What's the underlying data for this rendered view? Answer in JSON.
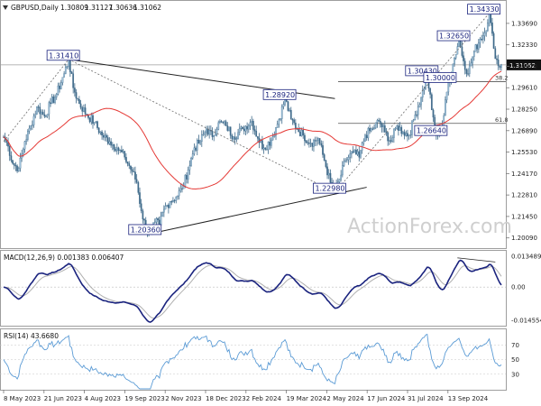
{
  "chart_data": {
    "type": "line",
    "symbol": "GBPUSD,Daily",
    "ohlc": [
      "1.30809",
      "1.31127",
      "1.30636",
      "1.31062"
    ],
    "last_price_label": "1.31062",
    "watermark": "ActionForex.com",
    "x_tick_labels": [
      "8 May 2023",
      "21 Jun 2023",
      "4 Aug 2023",
      "19 Sep 2023",
      "2 Nov 2023",
      "18 Dec 2023",
      "2 Feb 2024",
      "19 Mar 2024",
      "2 May 2024",
      "17 Jun 2024",
      "31 Jul 2024",
      "13 Sep 2024"
    ],
    "price_panel": {
      "ylim": [
        1.195,
        1.35
      ],
      "y_tick_labels": [
        "1.33690",
        "1.32330",
        "1.30970",
        "1.29610",
        "1.28250",
        "1.26890",
        "1.25530",
        "1.24170",
        "1.22810",
        "1.21450",
        "1.20090"
      ],
      "y_tick_values": [
        1.3369,
        1.3233,
        1.3097,
        1.2961,
        1.2825,
        1.2689,
        1.2553,
        1.2417,
        1.2281,
        1.2145,
        1.2009
      ],
      "price_anchors": [
        [
          0,
          1.265
        ],
        [
          3,
          1.259
        ],
        [
          6,
          1.248
        ],
        [
          10,
          1.245
        ],
        [
          14,
          1.262
        ],
        [
          18,
          1.272
        ],
        [
          22,
          1.284
        ],
        [
          27,
          1.278
        ],
        [
          31,
          1.286
        ],
        [
          35,
          1.292
        ],
        [
          40,
          1.305
        ],
        [
          43,
          1.3141
        ],
        [
          46,
          1.296
        ],
        [
          50,
          1.286
        ],
        [
          55,
          1.279
        ],
        [
          60,
          1.274
        ],
        [
          65,
          1.266
        ],
        [
          70,
          1.262
        ],
        [
          75,
          1.258
        ],
        [
          80,
          1.252
        ],
        [
          85,
          1.243
        ],
        [
          88,
          1.236
        ],
        [
          91,
          1.218
        ],
        [
          94,
          1.207
        ],
        [
          97,
          1.2036
        ],
        [
          100,
          1.211
        ],
        [
          103,
          1.209
        ],
        [
          106,
          1.219
        ],
        [
          110,
          1.224
        ],
        [
          114,
          1.227
        ],
        [
          118,
          1.232
        ],
        [
          122,
          1.244
        ],
        [
          126,
          1.258
        ],
        [
          130,
          1.262
        ],
        [
          134,
          1.27
        ],
        [
          138,
          1.265
        ],
        [
          142,
          1.274
        ],
        [
          147,
          1.272
        ],
        [
          152,
          1.265
        ],
        [
          158,
          1.27
        ],
        [
          164,
          1.275
        ],
        [
          168,
          1.264
        ],
        [
          172,
          1.258
        ],
        [
          177,
          1.263
        ],
        [
          182,
          1.276
        ],
        [
          186,
          1.2892
        ],
        [
          190,
          1.276
        ],
        [
          194,
          1.27
        ],
        [
          198,
          1.266
        ],
        [
          203,
          1.261
        ],
        [
          208,
          1.264
        ],
        [
          212,
          1.25
        ],
        [
          216,
          1.236
        ],
        [
          219,
          1.2298
        ],
        [
          222,
          1.238
        ],
        [
          226,
          1.25
        ],
        [
          231,
          1.255
        ],
        [
          235,
          1.252
        ],
        [
          239,
          1.266
        ],
        [
          244,
          1.27
        ],
        [
          248,
          1.275
        ],
        [
          252,
          1.268
        ],
        [
          256,
          1.262
        ],
        [
          260,
          1.272
        ],
        [
          264,
          1.268
        ],
        [
          268,
          1.266
        ],
        [
          272,
          1.279
        ],
        [
          276,
          1.29
        ],
        [
          280,
          1.3043
        ],
        [
          283,
          1.282
        ],
        [
          286,
          1.2664
        ],
        [
          290,
          1.272
        ],
        [
          294,
          1.3
        ],
        [
          298,
          1.315
        ],
        [
          301,
          1.3265
        ],
        [
          304,
          1.313
        ],
        [
          307,
          1.305
        ],
        [
          311,
          1.319
        ],
        [
          315,
          1.327
        ],
        [
          318,
          1.331
        ],
        [
          321,
          1.3433
        ],
        [
          324,
          1.321
        ],
        [
          327,
          1.31
        ],
        [
          329,
          1.3106
        ]
      ],
      "price_n": 330,
      "sma_period": 55,
      "annotations": [
        {
          "label": "1.31410",
          "x": 43,
          "y": 1.3141
        },
        {
          "label": "1.20360",
          "x": 97,
          "y": 1.2036
        },
        {
          "label": "1.28920",
          "x": 186,
          "y": 1.2892
        },
        {
          "label": "1.22980",
          "x": 219,
          "y": 1.2298
        },
        {
          "label": "1.30430",
          "x": 280,
          "y": 1.3043
        },
        {
          "label": "1.30000",
          "x": 292,
          "y": 1.3
        },
        {
          "label": "1.26640",
          "x": 286,
          "y": 1.2664
        },
        {
          "label": "1.32650",
          "x": 301,
          "y": 1.3265
        },
        {
          "label": "1.34330",
          "x": 321,
          "y": 1.3433
        }
      ],
      "fib_levels": [
        {
          "label": "38.2",
          "y": 1.3
        },
        {
          "label": "61.8",
          "y": 1.2735
        }
      ],
      "trendlines": [
        {
          "from": [
            43,
            1.3141
          ],
          "to": [
            219,
            1.2892
          ]
        },
        {
          "from": [
            97,
            1.2036
          ],
          "to": [
            240,
            1.233
          ]
        },
        {
          "from": [
            43,
            1.3141
          ],
          "to": [
            219,
            1.2298
          ]
        },
        {
          "from": [
            219,
            1.2298
          ],
          "to": [
            321,
            1.3433
          ]
        },
        {
          "from": [
            0,
            1.262
          ],
          "to": [
            43,
            1.3141
          ]
        }
      ],
      "horizontal_line_y": 1.3106
    },
    "macd_panel": {
      "title": "MACD(12,26,9) 0.001383 0.006407",
      "ylim": [
        -0.0165,
        0.0155
      ],
      "y_tick_labels": [
        "0.013489",
        "0.00",
        "-0.014554"
      ],
      "y_tick_values": [
        0.013489,
        0.0,
        -0.014554
      ]
    },
    "rsi_panel": {
      "title": "RSI(14) 43.6680",
      "ylim": [
        10,
        90
      ],
      "y_tick_labels": [
        "70",
        "50",
        "30"
      ],
      "y_tick_values": [
        70,
        50,
        30
      ]
    }
  }
}
